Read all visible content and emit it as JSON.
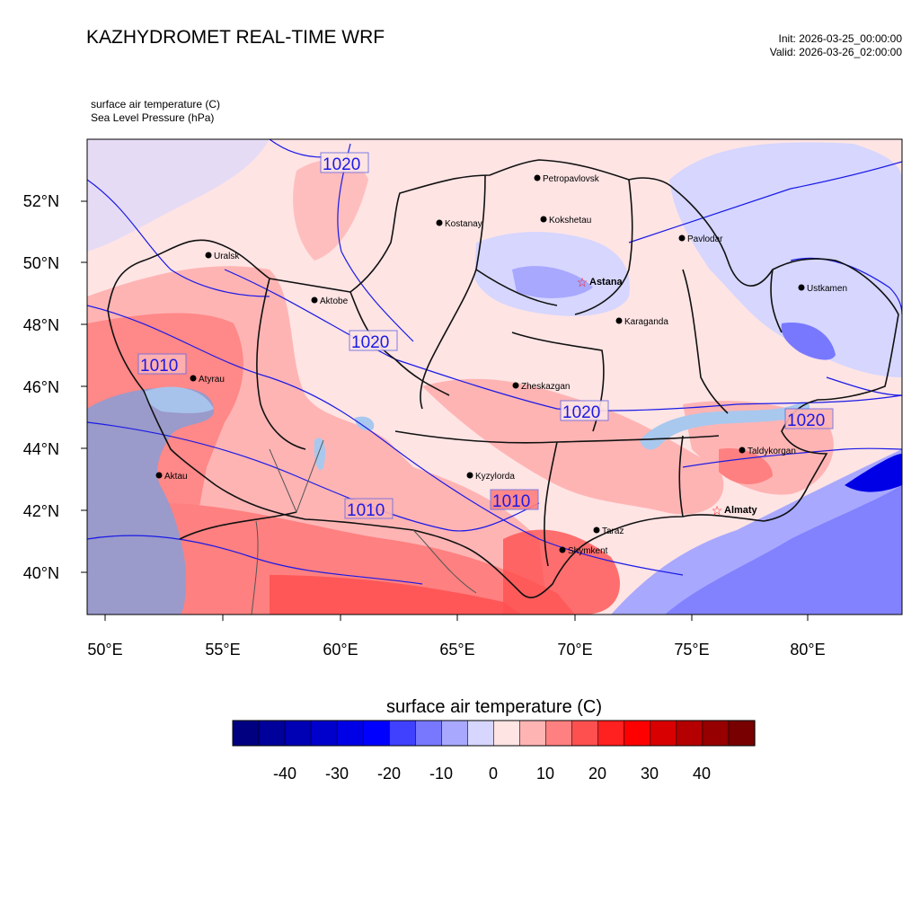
{
  "header": {
    "title": "KAZHYDROMET REAL-TIME WRF",
    "init": "Init: 2026-03-25_00:00:00",
    "valid": "Valid: 2026-03-26_02:00:00"
  },
  "fields": {
    "temperature": "surface air temperature   (C)",
    "pressure": "Sea Level Pressure   (hPa)"
  },
  "axes": {
    "lat_labels": [
      "52°N",
      "50°N",
      "48°N",
      "46°N",
      "44°N",
      "42°N",
      "40°N"
    ],
    "lon_labels": [
      "50°E",
      "55°E",
      "60°E",
      "65°E",
      "70°E",
      "75°E",
      "80°E"
    ]
  },
  "cities": [
    {
      "name": "Petropavlovsk",
      "capital": false
    },
    {
      "name": "Kostanay",
      "capital": false
    },
    {
      "name": "Kokshetau",
      "capital": false
    },
    {
      "name": "Pavlodar",
      "capital": false
    },
    {
      "name": "Uralsk",
      "capital": false
    },
    {
      "name": "Astana",
      "capital": true
    },
    {
      "name": "Ustkamen",
      "capital": false
    },
    {
      "name": "Aktobe",
      "capital": false
    },
    {
      "name": "Karaganda",
      "capital": false
    },
    {
      "name": "Atyrau",
      "capital": false
    },
    {
      "name": "Zheskazgan",
      "capital": false
    },
    {
      "name": "Taldykorgan",
      "capital": false
    },
    {
      "name": "Kyzylorda",
      "capital": false
    },
    {
      "name": "Aktau",
      "capital": false
    },
    {
      "name": "Almaty",
      "capital": true
    },
    {
      "name": "Taraz",
      "capital": false
    },
    {
      "name": "Shymkent",
      "capital": false
    }
  ],
  "isobar_labels": [
    "1020",
    "1020",
    "1010",
    "1020",
    "1020",
    "1010",
    "1010"
  ],
  "colorbar": {
    "title": "surface air temperature  (C)",
    "tick_labels": [
      "-40",
      "-30",
      "-20",
      "-10",
      "0",
      "10",
      "20",
      "30",
      "40"
    ],
    "colors": [
      "#000080",
      "#00009a",
      "#0000b4",
      "#0000cd",
      "#0000e6",
      "#0000ff",
      "#4040ff",
      "#7878ff",
      "#a8a8ff",
      "#d6d6ff",
      "#ffe4e4",
      "#ffb4b4",
      "#ff8080",
      "#ff5050",
      "#ff2020",
      "#ff0000",
      "#d80000",
      "#b40000",
      "#960000",
      "#780000"
    ]
  },
  "colors": {
    "isobar": "#1a1ae6",
    "border": "#111111",
    "capital_marker": "#ff0000"
  }
}
